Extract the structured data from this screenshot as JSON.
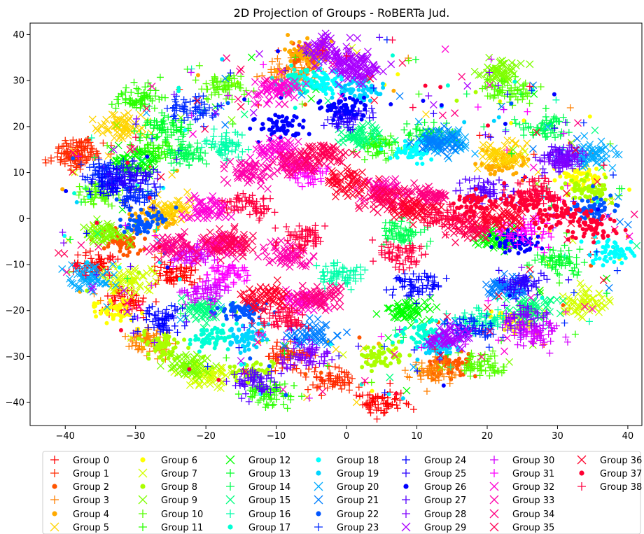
{
  "chart_data": {
    "type": "scatter",
    "title": "2D Projection of Groups - RoBERTa Jud.",
    "xlabel": "",
    "ylabel": "",
    "xlim": [
      -45,
      42
    ],
    "ylim": [
      -45,
      42.5
    ],
    "xticks": [
      -40,
      -30,
      -20,
      -10,
      0,
      10,
      20,
      30,
      40
    ],
    "yticks": [
      -40,
      -30,
      -20,
      -10,
      0,
      10,
      20,
      30,
      40
    ],
    "xtick_labels": [
      "−40",
      "−30",
      "−20",
      "−10",
      "0",
      "10",
      "20",
      "30",
      "40"
    ],
    "ytick_labels": [
      "−40",
      "−30",
      "−20",
      "−10",
      "0",
      "10",
      "20",
      "30",
      "40"
    ],
    "grid": false,
    "legend_position": "bottom",
    "legend_columns": 7,
    "series": [
      {
        "name": "Group 0",
        "marker": "+",
        "color": "#ff0000",
        "clusters": [
          [
            -36,
            -10
          ],
          [
            -32,
            -18
          ],
          [
            -24,
            -12
          ],
          [
            5,
            -40
          ]
        ]
      },
      {
        "name": "Group 1",
        "marker": "+",
        "color": "#ff2a00",
        "clusters": [
          [
            -39,
            13
          ],
          [
            -37,
            15
          ],
          [
            -8,
            -30
          ],
          [
            -2,
            -35
          ]
        ]
      },
      {
        "name": "Group 2",
        "marker": "o",
        "color": "#ff5500",
        "clusters": [
          [
            -32,
            -5
          ],
          [
            -5,
            35
          ],
          [
            15,
            -32
          ]
        ]
      },
      {
        "name": "Group 3",
        "marker": "+",
        "color": "#ff7f00",
        "clusters": [
          [
            -28,
            -27
          ],
          [
            -8,
            32
          ],
          [
            13,
            -33
          ]
        ]
      },
      {
        "name": "Group 4",
        "marker": "o",
        "color": "#ffaa00",
        "clusters": [
          [
            -27,
            0
          ],
          [
            -6,
            36
          ],
          [
            22,
            12
          ]
        ]
      },
      {
        "name": "Group 5",
        "marker": "x",
        "color": "#ffd400",
        "clusters": [
          [
            -32,
            20
          ],
          [
            -25,
            2
          ],
          [
            22,
            14
          ]
        ]
      },
      {
        "name": "Group 6",
        "marker": "o",
        "color": "#ffff00",
        "clusters": [
          [
            33,
            9
          ],
          [
            24,
            -22
          ],
          [
            -33,
            -20
          ]
        ]
      },
      {
        "name": "Group 7",
        "marker": "x",
        "color": "#d4ff00",
        "clusters": [
          [
            -31,
            -13
          ],
          [
            -20,
            -34
          ],
          [
            34,
            -18
          ]
        ]
      },
      {
        "name": "Group 8",
        "marker": "o",
        "color": "#aaff00",
        "clusters": [
          [
            -13,
            -33
          ],
          [
            -26,
            -28
          ],
          [
            34,
            6
          ],
          [
            5,
            -30
          ]
        ]
      },
      {
        "name": "Group 9",
        "marker": "x",
        "color": "#7fff00",
        "clusters": [
          [
            -22,
            -32
          ],
          [
            22,
            32
          ],
          [
            -34,
            -3
          ]
        ]
      },
      {
        "name": "Group 10",
        "marker": "+",
        "color": "#55ff00",
        "clusters": [
          [
            -35,
            5
          ],
          [
            23,
            28
          ],
          [
            19,
            -32
          ],
          [
            -17,
            29
          ]
        ]
      },
      {
        "name": "Group 11",
        "marker": "+",
        "color": "#2aff00",
        "clusters": [
          [
            -28,
            15
          ],
          [
            -11,
            -38
          ],
          [
            5,
            16
          ],
          [
            -30,
            26
          ]
        ]
      },
      {
        "name": "Group 12",
        "marker": "x",
        "color": "#00ff00",
        "clusters": [
          [
            -30,
            12
          ],
          [
            21,
            -4
          ],
          [
            9,
            -20
          ]
        ]
      },
      {
        "name": "Group 13",
        "marker": "+",
        "color": "#00ff2a",
        "clusters": [
          [
            -26,
            20
          ],
          [
            30,
            -9
          ],
          [
            12,
            18
          ]
        ]
      },
      {
        "name": "Group 14",
        "marker": "+",
        "color": "#00ff55",
        "clusters": [
          [
            -23,
            14
          ],
          [
            8,
            -3
          ],
          [
            28,
            20
          ]
        ]
      },
      {
        "name": "Group 15",
        "marker": "x",
        "color": "#00ff7f",
        "clusters": [
          [
            2,
            18
          ],
          [
            27,
            -20
          ],
          [
            -20,
            -20
          ]
        ]
      },
      {
        "name": "Group 16",
        "marker": "+",
        "color": "#00ffaa",
        "clusters": [
          [
            -17,
            16
          ],
          [
            -1,
            -12
          ],
          [
            19,
            -22
          ]
        ]
      },
      {
        "name": "Group 17",
        "marker": "o",
        "color": "#00ffd4",
        "clusters": [
          [
            -7,
            30
          ],
          [
            11,
            -25
          ],
          [
            -19,
            -26
          ]
        ]
      },
      {
        "name": "Group 18",
        "marker": "o",
        "color": "#00ffff",
        "clusters": [
          [
            -3,
            30
          ],
          [
            37,
            -7
          ],
          [
            9,
            15
          ]
        ]
      },
      {
        "name": "Group 19",
        "marker": "o",
        "color": "#00d4ff",
        "clusters": [
          [
            2,
            28
          ],
          [
            13,
            -28
          ],
          [
            -14,
            -26
          ]
        ]
      },
      {
        "name": "Group 20",
        "marker": "x",
        "color": "#00aaff",
        "clusters": [
          [
            35,
            14
          ],
          [
            14,
            17
          ],
          [
            -37,
            -13
          ]
        ]
      },
      {
        "name": "Group 21",
        "marker": "x",
        "color": "#007fff",
        "clusters": [
          [
            13,
            17
          ],
          [
            -5,
            -25
          ],
          [
            23,
            -15
          ]
        ]
      },
      {
        "name": "Group 22",
        "marker": "o",
        "color": "#0055ff",
        "clusters": [
          [
            -29,
            -1
          ],
          [
            35,
            2
          ],
          [
            -15,
            -20
          ]
        ]
      },
      {
        "name": "Group 23",
        "marker": "+",
        "color": "#002aff",
        "clusters": [
          [
            -34,
            10
          ],
          [
            -30,
            5
          ],
          [
            18,
            -24
          ],
          [
            -22,
            24
          ]
        ]
      },
      {
        "name": "Group 24",
        "marker": "+",
        "color": "#0000ff",
        "clusters": [
          [
            -33,
            8
          ],
          [
            10,
            -15
          ],
          [
            -26,
            -22
          ]
        ]
      },
      {
        "name": "Group 25",
        "marker": "+",
        "color": "#2a00ff",
        "clusters": [
          [
            -31,
            9
          ],
          [
            25,
            -14
          ],
          [
            0,
            22
          ]
        ]
      },
      {
        "name": "Group 26",
        "marker": "o",
        "color": "#0000ff",
        "clusters": [
          [
            0,
            24
          ],
          [
            -9,
            20
          ],
          [
            24,
            -5
          ]
        ]
      },
      {
        "name": "Group 27",
        "marker": "+",
        "color": "#5500ff",
        "clusters": [
          [
            30,
            13
          ],
          [
            -13,
            -36
          ],
          [
            20,
            6
          ]
        ]
      },
      {
        "name": "Group 28",
        "marker": "+",
        "color": "#7f00ff",
        "clusters": [
          [
            25,
            -22
          ],
          [
            -6,
            -30
          ],
          [
            31,
            13
          ]
        ]
      },
      {
        "name": "Group 29",
        "marker": "x",
        "color": "#aa00ff",
        "clusters": [
          [
            0,
            34
          ],
          [
            -3,
            37
          ],
          [
            2,
            32
          ],
          [
            15,
            -26
          ]
        ]
      },
      {
        "name": "Group 30",
        "marker": "+",
        "color": "#d400ff",
        "clusters": [
          [
            -22,
            -8
          ],
          [
            -20,
            -16
          ],
          [
            27,
            -25
          ]
        ]
      },
      {
        "name": "Group 31",
        "marker": "+",
        "color": "#ff00ff",
        "clusters": [
          [
            -17,
            -12
          ],
          [
            -6,
            10
          ],
          [
            25,
            -3
          ]
        ]
      },
      {
        "name": "Group 32",
        "marker": "x",
        "color": "#ff00d4",
        "clusters": [
          [
            -10,
            28
          ],
          [
            -10,
            15
          ],
          [
            -20,
            2
          ],
          [
            -6,
            -18
          ]
        ]
      },
      {
        "name": "Group 33",
        "marker": "x",
        "color": "#ff00aa",
        "clusters": [
          [
            -14,
            10
          ],
          [
            -8,
            -8
          ],
          [
            5,
            6
          ],
          [
            -18,
            -6
          ]
        ]
      },
      {
        "name": "Group 34",
        "marker": "x",
        "color": "#ff0080",
        "clusters": [
          [
            -7,
            12
          ],
          [
            -4,
            -17
          ],
          [
            12,
            5
          ],
          [
            -24,
            -6
          ]
        ]
      },
      {
        "name": "Group 35",
        "marker": "x",
        "color": "#ff0055",
        "clusters": [
          [
            -3,
            14
          ],
          [
            6,
            4
          ],
          [
            -16,
            -5
          ],
          [
            17,
            -2
          ]
        ]
      },
      {
        "name": "Group 36",
        "marker": "x",
        "color": "#ff002a",
        "clusters": [
          [
            0,
            8
          ],
          [
            10,
            2
          ],
          [
            -12,
            -17
          ],
          [
            22,
            0
          ]
        ]
      },
      {
        "name": "Group 37",
        "marker": "o",
        "color": "#ff0033",
        "clusters": [
          [
            25,
            4
          ],
          [
            30,
            1
          ],
          [
            35,
            -2
          ],
          [
            18,
            3
          ]
        ]
      },
      {
        "name": "Group 38",
        "marker": "+",
        "color": "#ff0040",
        "clusters": [
          [
            -6,
            -4
          ],
          [
            8,
            -8
          ],
          [
            -9,
            -22
          ],
          [
            14,
            0
          ],
          [
            27,
            6
          ],
          [
            -14,
            3
          ]
        ]
      }
    ]
  }
}
